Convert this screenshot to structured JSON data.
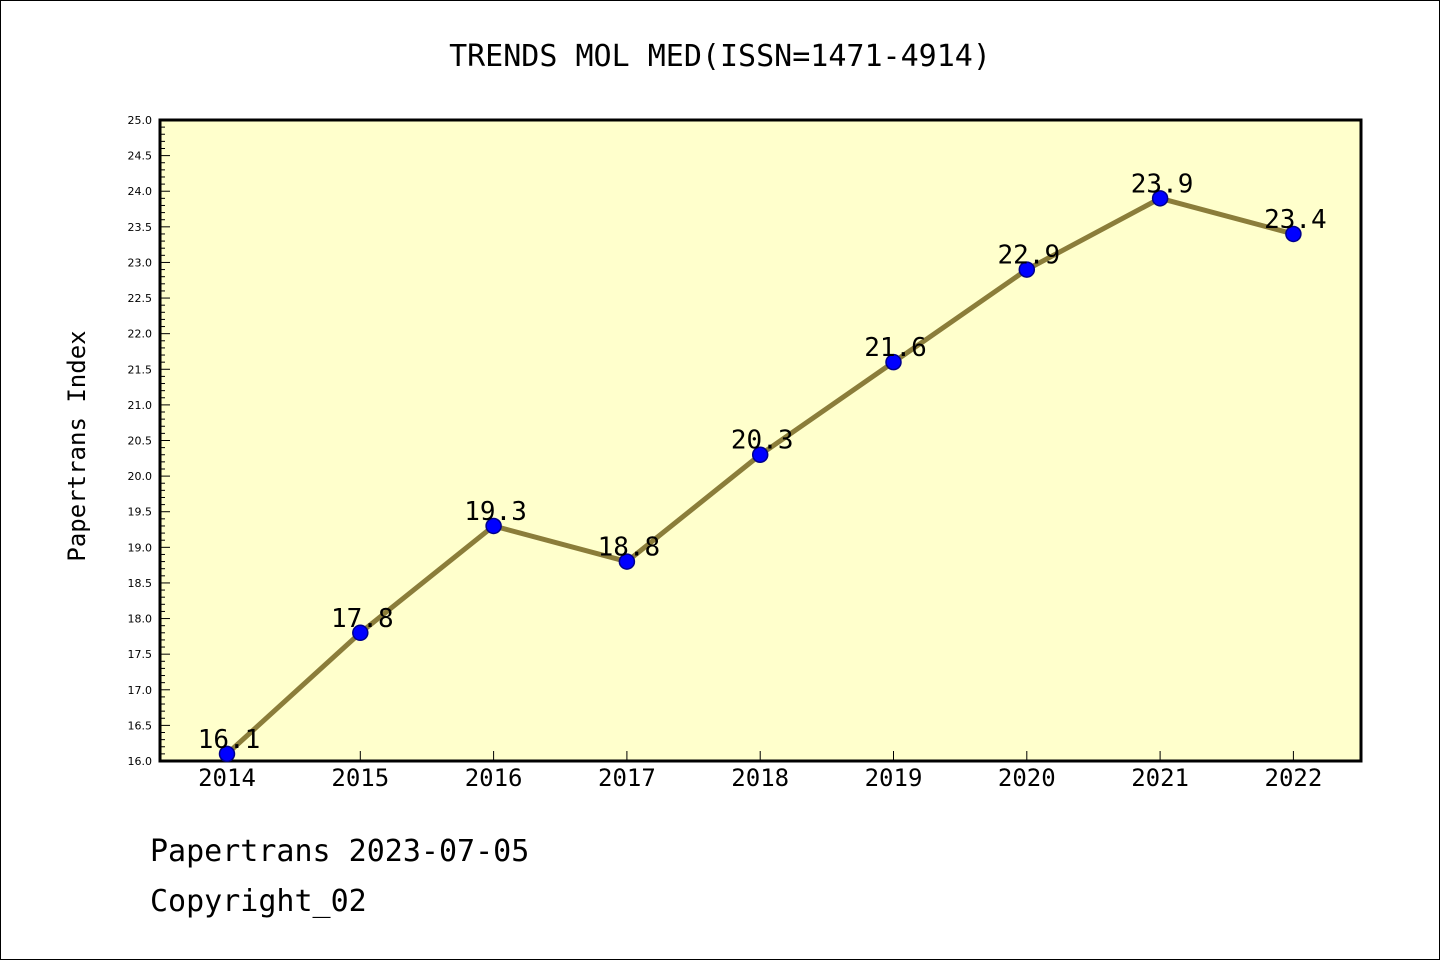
{
  "chart_data": {
    "type": "line",
    "title": "TRENDS MOL MED(ISSN=1471-4914)",
    "ylabel": "Papertrans Index",
    "xlabel": "",
    "categories": [
      "2014",
      "2015",
      "2016",
      "2017",
      "2018",
      "2019",
      "2020",
      "2021",
      "2022"
    ],
    "values": [
      16.1,
      17.8,
      19.3,
      18.8,
      20.3,
      21.6,
      22.9,
      23.9,
      23.4
    ],
    "data_labels": [
      "16.1",
      "17.8",
      "19.3",
      "18.8",
      "20.3",
      "21.6",
      "22.9",
      "23.9",
      "23.4"
    ],
    "ylim": [
      16.0,
      25.0
    ],
    "yticks": [
      "16.0",
      "16.5",
      "17.0",
      "17.5",
      "18.0",
      "18.5",
      "19.0",
      "19.5",
      "20.0",
      "20.5",
      "21.0",
      "21.5",
      "22.0",
      "22.5",
      "23.0",
      "23.5",
      "24.0",
      "24.5",
      "25.0"
    ],
    "grid": false,
    "legend": "none"
  },
  "colors": {
    "plot_background": "#ffffcc",
    "line": "#8b7d3a",
    "marker": "#0000ff",
    "axis": "#000000"
  },
  "footer": {
    "line1": "Papertrans 2023-07-05",
    "line2": "Copyright_02"
  }
}
